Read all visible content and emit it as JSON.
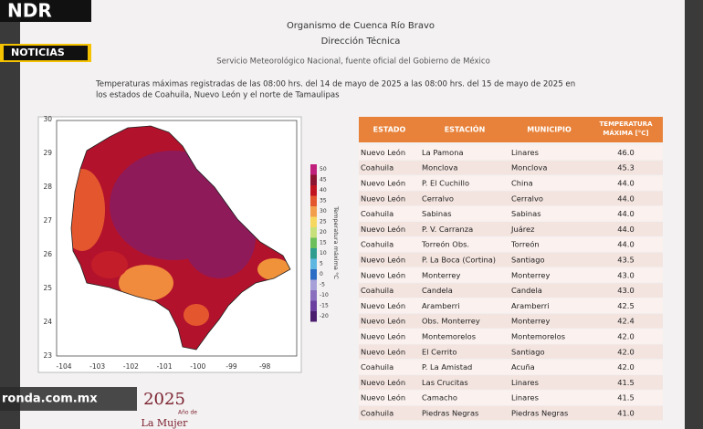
{
  "logo": {
    "brand": "NDR",
    "section": "NOTICIAS"
  },
  "header": {
    "title": "Organismo de Cuenca Río Bravo",
    "subtitle": "Dirección Técnica",
    "source": "Servicio Meteorológico Nacional, fuente oficial del Gobierno de México",
    "description": [
      "Temperaturas máximas registradas de las 08:00 hrs. del 14 de mayo de 2025 a las 08:00 hrs. del 15 de mayo de 2025 en",
      "los estados de Coahuila, Nuevo León y el norte de Tamaulipas"
    ]
  },
  "map": {
    "lat_ticks": [
      "30",
      "29",
      "28",
      "27",
      "26",
      "25",
      "24",
      "23"
    ],
    "lon_ticks": [
      "-104",
      "-103",
      "-102",
      "-101",
      "-100",
      "-99",
      "-98"
    ],
    "colorbar_labels": [
      "50",
      "45",
      "40",
      "35",
      "30",
      "25",
      "20",
      "15",
      "10",
      "5",
      "0",
      "-5",
      "-10",
      "-15",
      "-20"
    ],
    "colorbar_title": "Temperatura máxima °C"
  },
  "table": {
    "columns": [
      [
        "ESTADO"
      ],
      [
        "ESTACIÓN"
      ],
      [
        "MUNICIPIO"
      ],
      [
        "TEMPERATURA",
        "MÁXIMA [°C]"
      ]
    ],
    "rows": [
      [
        "Nuevo León",
        "La Pamona",
        "Linares",
        "46.0"
      ],
      [
        "Coahuila",
        "Monclova",
        "Monclova",
        "45.3"
      ],
      [
        "Nuevo León",
        "P. El Cuchillo",
        "China",
        "44.0"
      ],
      [
        "Nuevo León",
        "Cerralvo",
        "Cerralvo",
        "44.0"
      ],
      [
        "Coahuila",
        "Sabinas",
        "Sabinas",
        "44.0"
      ],
      [
        "Nuevo León",
        "P. V. Carranza",
        "Juárez",
        "44.0"
      ],
      [
        "Coahuila",
        "Torreón Obs.",
        "Torreón",
        "44.0"
      ],
      [
        "Nuevo León",
        "P. La Boca (Cortina)",
        "Santiago",
        "43.5"
      ],
      [
        "Nuevo León",
        "Monterrey",
        "Monterrey",
        "43.0"
      ],
      [
        "Coahuila",
        "Candela",
        "Candela",
        "43.0"
      ],
      [
        "Nuevo León",
        "Aramberri",
        "Aramberri",
        "42.5"
      ],
      [
        "Nuevo León",
        "Obs. Monterrey",
        "Monterrey",
        "42.4"
      ],
      [
        "Nuevo León",
        "Montemorelos",
        "Montemorelos",
        "42.0"
      ],
      [
        "Nuevo León",
        "El Cerrito",
        "Santiago",
        "42.0"
      ],
      [
        "Coahuila",
        "P. La Amistad",
        "Acuña",
        "42.0"
      ],
      [
        "Nuevo León",
        "Las Crucitas",
        "Linares",
        "41.5"
      ],
      [
        "Nuevo León",
        "Camacho",
        "Linares",
        "41.5"
      ],
      [
        "Coahuila",
        "Piedras Negras",
        "Piedras Negras",
        "41.0"
      ]
    ]
  },
  "footer": {
    "website": "ronda.com.mx",
    "year": "2025",
    "motto_line1": "Año de",
    "motto_line2": "La Mujer"
  }
}
